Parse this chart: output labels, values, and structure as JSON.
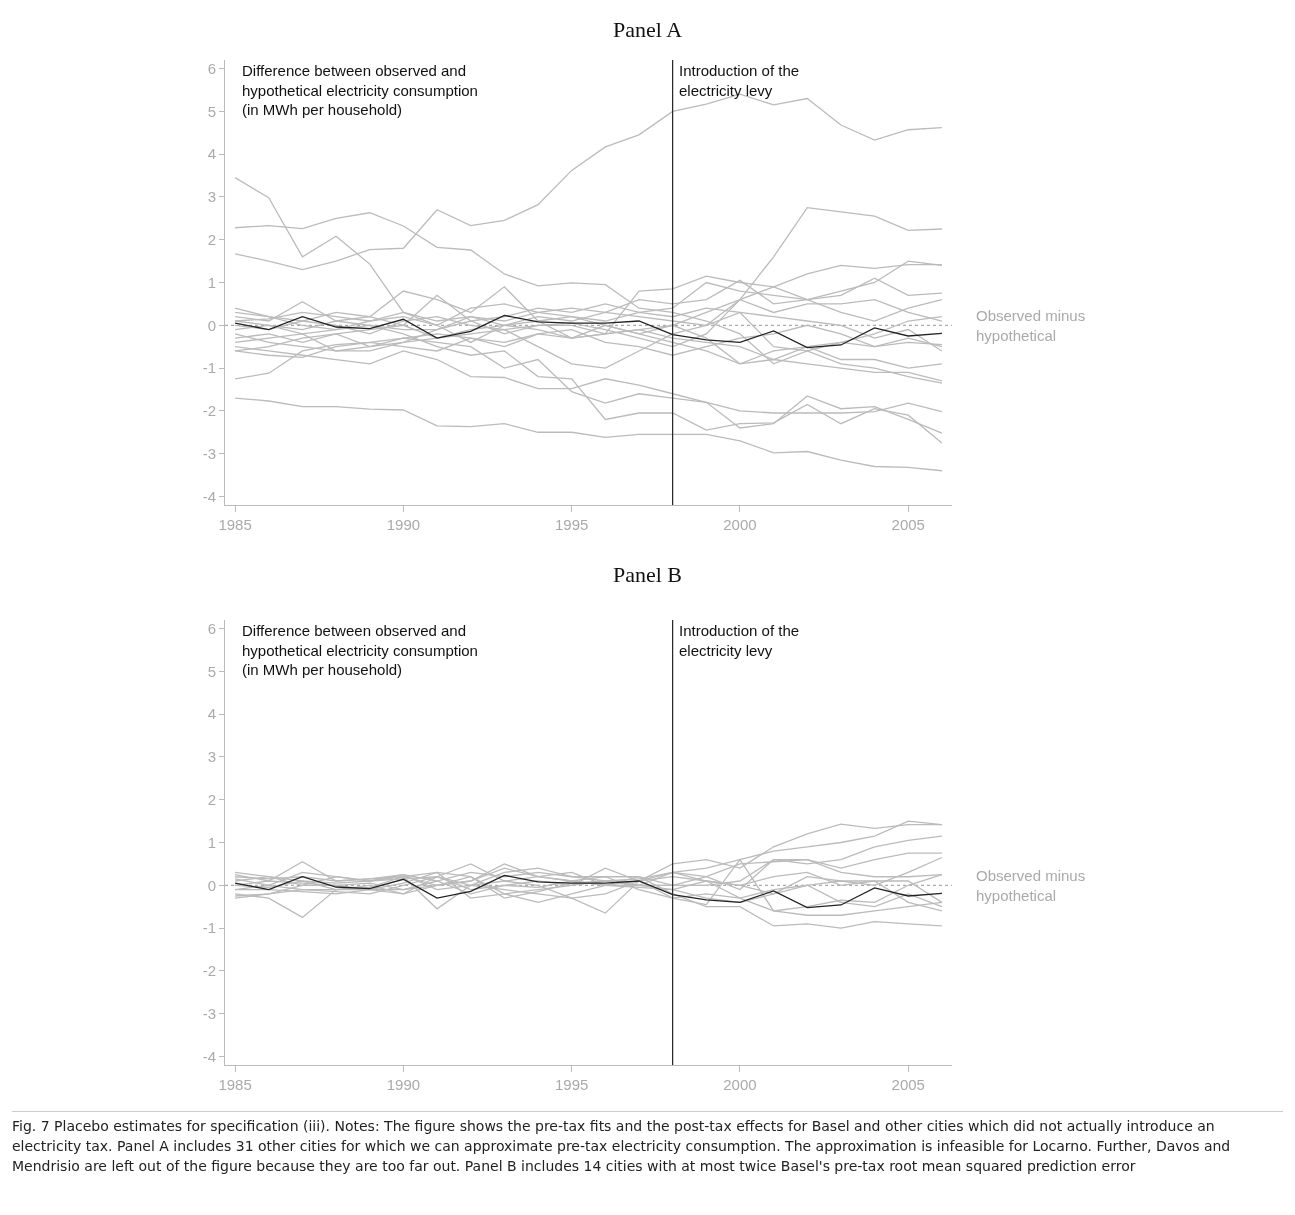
{
  "chart_data": [
    {
      "type": "line",
      "title": "Panel A",
      "ylabel": "Difference between observed and\nhypothetical electricity consumption\n(in MWh per household)",
      "x": [
        1985,
        1986,
        1987,
        1988,
        1989,
        1990,
        1991,
        1992,
        1993,
        1994,
        1995,
        1996,
        1997,
        1998,
        1999,
        2000,
        2001,
        2002,
        2003,
        2004,
        2005,
        2006
      ],
      "xlim": [
        1984.7,
        2006.3
      ],
      "xticks": [
        1985,
        1990,
        1995,
        2000,
        2005
      ],
      "ylim": [
        -4.2,
        6.2
      ],
      "yticks": [
        -4,
        -3,
        -2,
        -1,
        0,
        1,
        2,
        3,
        4,
        5,
        6
      ],
      "grid": false,
      "marker": "none",
      "line_style": "solid",
      "ref_lines": [
        {
          "axis": "x",
          "value": 1998,
          "label": "Introduction of the\nelectricity levy",
          "color": "#222222",
          "line_style": "solid"
        },
        {
          "axis": "y",
          "value": 0,
          "label": null,
          "color": "#aaaaaa",
          "line_style": "dotted"
        }
      ],
      "annotations": [
        "Observed minus\nhypothetical"
      ],
      "series": [
        {
          "color": "#bbbbbb",
          "values": [
            1.67,
            1.5,
            1.3,
            1.5,
            1.77,
            1.8,
            2.7,
            2.33,
            2.45,
            2.82,
            3.62,
            4.17,
            4.45,
            5.0,
            5.17,
            5.4,
            5.15,
            5.3,
            4.68,
            4.33,
            4.57,
            4.62
          ]
        },
        {
          "color": "#bbbbbb",
          "values": [
            2.28,
            2.33,
            2.26,
            2.5,
            2.63,
            2.32,
            1.82,
            1.76,
            1.2,
            0.92,
            0.99,
            0.95,
            0.4,
            0.3,
            0.1,
            -0.2,
            -0.9,
            -0.6,
            -0.9,
            -1.0,
            -1.2,
            -1.35
          ]
        },
        {
          "color": "#bbbbbb",
          "values": [
            3.45,
            2.98,
            1.6,
            2.08,
            1.43,
            0.3,
            0.1,
            0.2,
            0.0,
            -0.1,
            -0.3,
            -0.2,
            -0.1,
            0.0,
            0.3,
            0.6,
            0.9,
            1.2,
            1.4,
            1.33,
            1.42,
            1.42
          ]
        },
        {
          "color": "#bbbbbb",
          "values": [
            -1.7,
            -1.77,
            -1.9,
            -1.9,
            -1.96,
            -1.98,
            -2.35,
            -2.37,
            -2.3,
            -2.5,
            -2.5,
            -2.62,
            -2.55,
            -2.55,
            -2.55,
            -2.7,
            -2.98,
            -2.95,
            -3.15,
            -3.3,
            -3.32,
            -3.4
          ]
        },
        {
          "color": "#bbbbbb",
          "values": [
            -0.3,
            -0.2,
            -0.4,
            -0.2,
            -0.1,
            0.0,
            -0.3,
            -0.2,
            -0.1,
            0.0,
            0.05,
            -0.1,
            -0.3,
            -0.5,
            -0.2,
            0.6,
            1.6,
            2.75,
            2.65,
            2.55,
            2.22,
            2.25
          ]
        },
        {
          "color": "#bbbbbb",
          "values": [
            -0.5,
            -0.6,
            -0.7,
            -0.8,
            -0.9,
            -0.6,
            -0.8,
            -1.2,
            -1.22,
            -1.48,
            -1.48,
            -1.25,
            -1.4,
            -1.6,
            -1.8,
            -2.0,
            -2.05,
            -2.05,
            -2.05,
            -2.02,
            -1.82,
            -2.02
          ]
        },
        {
          "color": "#bbbbbb",
          "values": [
            -1.25,
            -1.12,
            -0.6,
            -0.45,
            -0.4,
            -0.3,
            -0.4,
            -0.5,
            -1.0,
            -0.8,
            -1.55,
            -1.82,
            -1.6,
            -1.7,
            -1.8,
            -2.4,
            -2.3,
            -1.65,
            -1.95,
            -1.9,
            -2.2,
            -2.52
          ]
        },
        {
          "color": "#bbbbbb",
          "values": [
            0.1,
            0.0,
            -0.2,
            -0.1,
            0.0,
            -0.2,
            -0.5,
            -0.7,
            -0.6,
            -1.2,
            -1.25,
            -2.2,
            -2.05,
            -2.05,
            -2.45,
            -2.3,
            -2.28,
            -1.85,
            -2.3,
            -1.95,
            -2.1,
            -2.75
          ]
        },
        {
          "color": "#bbbbbb",
          "values": [
            0.4,
            0.2,
            0.1,
            0.3,
            0.2,
            0.8,
            0.6,
            0.3,
            0.9,
            0.1,
            -0.3,
            -0.2,
            0.8,
            0.85,
            1.15,
            1.0,
            0.9,
            0.6,
            0.7,
            1.1,
            0.7,
            0.75
          ]
        },
        {
          "color": "#bbbbbb",
          "values": [
            -0.6,
            -0.5,
            -0.3,
            -0.2,
            -0.5,
            -0.4,
            -0.1,
            0.2,
            0.1,
            0.3,
            0.4,
            0.3,
            0.6,
            0.5,
            0.6,
            1.05,
            0.5,
            0.6,
            0.8,
            1.0,
            1.5,
            1.4
          ]
        },
        {
          "color": "#bbbbbb",
          "values": [
            0.2,
            0.1,
            0.55,
            0.1,
            0.2,
            0.0,
            0.7,
            0.1,
            0.2,
            0.4,
            0.3,
            0.5,
            0.3,
            0.4,
            1.0,
            0.8,
            0.7,
            0.6,
            0.3,
            0.1,
            0.4,
            0.6
          ]
        },
        {
          "color": "#bbbbbb",
          "values": [
            -0.4,
            -0.3,
            -0.2,
            -0.6,
            -0.5,
            -0.3,
            -0.2,
            -0.3,
            -0.5,
            -0.2,
            -0.3,
            0.0,
            -0.2,
            -0.4,
            -0.6,
            -0.9,
            -0.8,
            -0.9,
            -1.0,
            -1.1,
            -1.1,
            -1.3
          ]
        },
        {
          "color": "#bbbbbb",
          "values": [
            0.0,
            -0.1,
            0.1,
            0.0,
            -0.2,
            0.1,
            0.2,
            0.0,
            -0.1,
            -0.5,
            -0.9,
            -1.0,
            -0.6,
            -0.2,
            0.0,
            0.3,
            -0.5,
            -0.6,
            -0.4,
            -0.2,
            0.1,
            0.2
          ]
        },
        {
          "color": "#bbbbbb",
          "values": [
            -0.2,
            -0.4,
            -0.5,
            -0.6,
            -0.6,
            -0.4,
            -0.3,
            -0.1,
            0.0,
            0.1,
            0.2,
            0.0,
            -0.2,
            0.0,
            -0.3,
            -0.9,
            -0.6,
            -0.5,
            -0.8,
            -0.8,
            -1.0,
            -0.9
          ]
        },
        {
          "color": "#bbbbbb",
          "values": [
            0.3,
            0.2,
            0.0,
            -0.1,
            0.1,
            0.2,
            0.0,
            0.4,
            0.5,
            0.3,
            0.2,
            0.1,
            0.3,
            0.2,
            0.4,
            0.3,
            0.2,
            0.1,
            0.0,
            -0.3,
            -0.1,
            -0.6
          ]
        },
        {
          "color": "#bbbbbb",
          "values": [
            -0.6,
            -0.7,
            -0.75,
            -0.5,
            -0.4,
            -0.5,
            -0.6,
            -0.3,
            -0.4,
            -0.2,
            -0.1,
            -0.4,
            -0.5,
            -0.7,
            -0.5,
            -0.3,
            -0.2,
            0.0,
            -0.2,
            -0.5,
            -0.4,
            -0.45
          ]
        },
        {
          "color": "#bbbbbb",
          "values": [
            0.1,
            0.15,
            0.3,
            0.2,
            0.1,
            0.3,
            0.0,
            -0.4,
            0.0,
            0.2,
            0.1,
            0.3,
            0.2,
            0.1,
            0.0,
            0.6,
            0.3,
            0.5,
            0.5,
            0.6,
            0.3,
            0.1
          ]
        },
        {
          "color": "#bbbbbb",
          "values": [
            -0.1,
            0.0,
            -0.1,
            0.1,
            0.0,
            -0.1,
            -0.1,
            0.1,
            -0.2,
            0.0,
            0.0,
            -0.2,
            -0.1,
            -0.3,
            -0.4,
            -0.5,
            -0.8,
            -0.5,
            -0.4,
            -0.5,
            -0.3,
            -0.5
          ]
        },
        {
          "color": "#222222",
          "values": [
            0.05,
            -0.1,
            0.2,
            -0.04,
            -0.08,
            0.14,
            -0.3,
            -0.14,
            0.23,
            0.08,
            0.05,
            0.05,
            0.1,
            -0.22,
            -0.34,
            -0.4,
            -0.13,
            -0.52,
            -0.46,
            -0.06,
            -0.25,
            -0.19
          ]
        }
      ]
    },
    {
      "type": "line",
      "title": "Panel B",
      "ylabel": "Difference between observed and\nhypothetical electricity consumption\n(in MWh per household)",
      "x": [
        1985,
        1986,
        1987,
        1988,
        1989,
        1990,
        1991,
        1992,
        1993,
        1994,
        1995,
        1996,
        1997,
        1998,
        1999,
        2000,
        2001,
        2002,
        2003,
        2004,
        2005,
        2006
      ],
      "xlim": [
        1984.7,
        2006.3
      ],
      "xticks": [
        1985,
        1990,
        1995,
        2000,
        2005
      ],
      "ylim": [
        -4.2,
        6.2
      ],
      "yticks": [
        -4,
        -3,
        -2,
        -1,
        0,
        1,
        2,
        3,
        4,
        5,
        6
      ],
      "grid": false,
      "marker": "none",
      "line_style": "solid",
      "ref_lines": [
        {
          "axis": "x",
          "value": 1998,
          "label": "Introduction of the\nelectricity levy",
          "color": "#222222",
          "line_style": "solid"
        },
        {
          "axis": "y",
          "value": 0,
          "label": null,
          "color": "#aaaaaa",
          "line_style": "dotted"
        }
      ],
      "annotations": [
        "Observed minus\nhypothetical",
        "Fig. 7 Placebo estimates for specification (iii). Notes: The figure shows the pre-tax fits and the post-tax effects for Basel and other cities which did not actually introduce an electricity tax. Panel A includes 31 other cities for which we can approximate pre-tax electricity consumption. The approximation is infeasible for Locarno. Further, Davos and Mendrisio are left out of the figure because they are too far out. Panel B includes 14 cities with at most twice Basel's pre-tax root mean squared prediction error"
      ],
      "series": [
        {
          "color": "#bbbbbb",
          "values": [
            0.25,
            0.1,
            0.55,
            0.1,
            0.15,
            0.2,
            0.0,
            0.1,
            0.5,
            0.2,
            0.1,
            0.0,
            0.1,
            0.5,
            0.6,
            0.4,
            0.9,
            1.2,
            1.43,
            1.33,
            1.42,
            1.42
          ]
        },
        {
          "color": "#bbbbbb",
          "values": [
            -0.2,
            -0.3,
            -0.75,
            -0.1,
            -0.1,
            -0.2,
            0.2,
            0.5,
            0.1,
            0.0,
            -0.3,
            -0.65,
            0.1,
            0.3,
            0.4,
            0.6,
            0.8,
            0.9,
            1.0,
            1.15,
            1.5,
            1.42
          ]
        },
        {
          "color": "#bbbbbb",
          "values": [
            -0.3,
            -0.2,
            -0.1,
            -0.1,
            -0.05,
            0.2,
            -0.55,
            0.0,
            0.3,
            0.4,
            0.2,
            0.1,
            0.0,
            0.3,
            0.2,
            -0.1,
            0.6,
            0.5,
            0.6,
            0.9,
            1.05,
            1.15
          ]
        },
        {
          "color": "#bbbbbb",
          "values": [
            0.1,
            0.2,
            0.0,
            0.2,
            0.1,
            0.2,
            0.3,
            -0.3,
            -0.2,
            -0.4,
            -0.2,
            0.0,
            0.2,
            -0.2,
            -0.5,
            -0.5,
            -0.95,
            -0.9,
            -1.0,
            -0.85,
            -0.9,
            -0.95
          ]
        },
        {
          "color": "#bbbbbb",
          "values": [
            0.0,
            -0.05,
            0.1,
            -0.1,
            0.0,
            -0.2,
            0.0,
            0.2,
            -0.2,
            -0.1,
            0.0,
            0.4,
            0.1,
            -0.3,
            -0.2,
            -0.3,
            -0.6,
            -0.7,
            -0.7,
            -0.6,
            -0.5,
            -0.4
          ]
        },
        {
          "color": "#bbbbbb",
          "values": [
            0.2,
            0.15,
            0.2,
            0.1,
            0.15,
            0.25,
            0.1,
            0.3,
            0.2,
            0.3,
            0.2,
            0.2,
            0.2,
            0.0,
            0.0,
            0.1,
            0.6,
            0.6,
            0.4,
            0.6,
            0.75,
            0.75
          ]
        },
        {
          "color": "#bbbbbb",
          "values": [
            -0.1,
            0.0,
            -0.1,
            -0.15,
            -0.2,
            0.0,
            0.2,
            -0.1,
            0.0,
            0.1,
            0.0,
            0.1,
            0.0,
            -0.1,
            0.1,
            0.0,
            -0.2,
            0.2,
            0.1,
            0.0,
            0.3,
            0.65
          ]
        },
        {
          "color": "#bbbbbb",
          "values": [
            0.3,
            0.2,
            0.1,
            0.05,
            0.1,
            0.25,
            -0.1,
            0.0,
            -0.1,
            -0.2,
            -0.3,
            -0.2,
            0.1,
            0.2,
            0.1,
            0.0,
            0.2,
            0.3,
            0.0,
            0.1,
            -0.4,
            -0.6
          ]
        },
        {
          "color": "#bbbbbb",
          "values": [
            -0.25,
            -0.2,
            0.0,
            0.0,
            0.05,
            -0.1,
            0.1,
            -0.2,
            0.0,
            -0.05,
            0.1,
            0.2,
            -0.1,
            -0.3,
            -0.45,
            0.6,
            -0.6,
            -0.5,
            -0.35,
            -0.4,
            0.0,
            0.25
          ]
        },
        {
          "color": "#bbbbbb",
          "values": [
            0.0,
            0.1,
            0.05,
            0.0,
            -0.1,
            0.05,
            0.3,
            0.2,
            -0.3,
            -0.15,
            0.05,
            0.1,
            0.15,
            0.3,
            0.1,
            -0.3,
            -0.1,
            0.0,
            -0.4,
            -0.5,
            -0.2,
            -0.5
          ]
        },
        {
          "color": "#bbbbbb",
          "values": [
            0.15,
            0.0,
            0.3,
            0.2,
            0.1,
            0.15,
            0.2,
            0.0,
            0.1,
            0.2,
            0.3,
            0.0,
            0.0,
            0.0,
            0.2,
            0.5,
            0.55,
            0.6,
            0.3,
            0.2,
            0.2,
            0.25
          ]
        },
        {
          "color": "#bbbbbb",
          "values": [
            -0.1,
            -0.1,
            -0.15,
            -0.2,
            -0.1,
            -0.1,
            0.0,
            0.1,
            0.4,
            0.2,
            0.1,
            0.0,
            -0.05,
            -0.1,
            -0.3,
            -0.4,
            -0.2,
            0.0,
            0.1,
            0.1,
            0.1,
            -0.4
          ]
        },
        {
          "color": "#222222",
          "values": [
            0.05,
            -0.1,
            0.2,
            -0.04,
            -0.08,
            0.14,
            -0.3,
            -0.14,
            0.23,
            0.08,
            0.05,
            0.05,
            0.1,
            -0.22,
            -0.34,
            -0.4,
            -0.13,
            -0.52,
            -0.46,
            -0.06,
            -0.25,
            -0.19
          ]
        }
      ]
    }
  ]
}
